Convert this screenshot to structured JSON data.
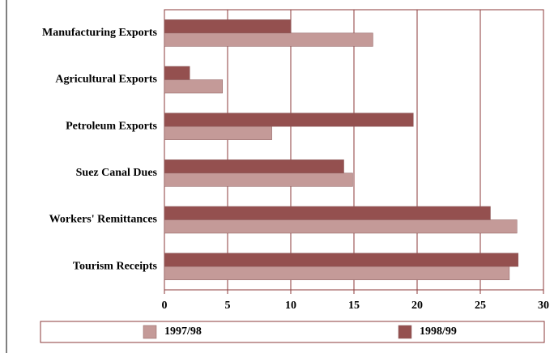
{
  "chart_data": {
    "type": "barh",
    "categories": [
      "Manufacturing Exports",
      "Agricultural Exports",
      "Petroleum Exports",
      "Suez Canal Dues",
      "Workers' Remittances",
      "Tourism Receipts"
    ],
    "series": [
      {
        "name": "1997/98",
        "color": "#c49a98",
        "values": [
          16.5,
          4.6,
          8.5,
          14.9,
          27.9,
          27.3
        ]
      },
      {
        "name": "1998/99",
        "color": "#94504f",
        "values": [
          10.0,
          2.0,
          19.7,
          14.2,
          25.8,
          28.0
        ]
      }
    ],
    "xlim": [
      0,
      30
    ],
    "xticks": [
      0,
      5,
      10,
      15,
      20,
      25,
      30
    ],
    "grid": true,
    "legend": "bottom"
  }
}
